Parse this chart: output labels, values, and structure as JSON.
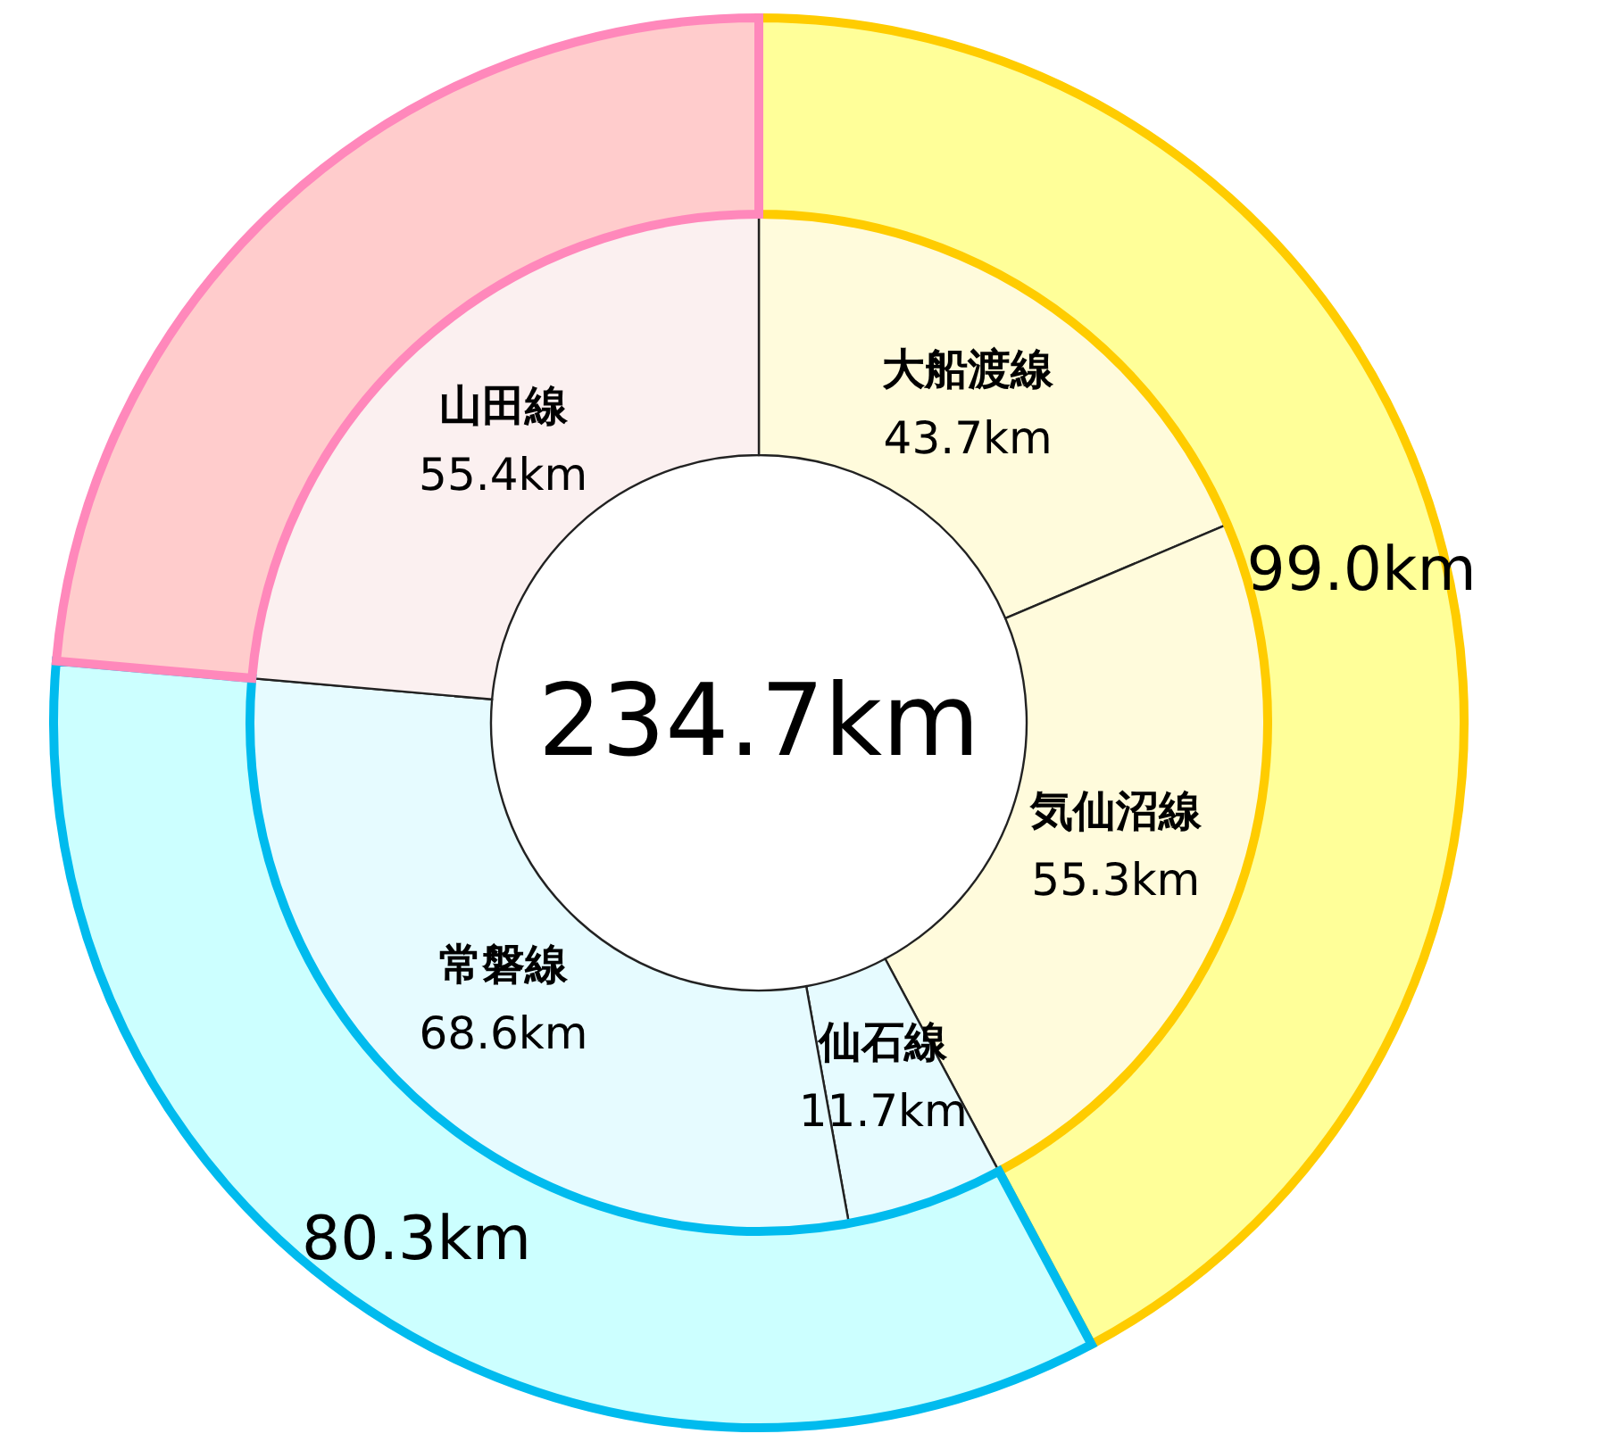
{
  "chart_data": {
    "type": "donut",
    "annotations": [
      "234.7km"
    ],
    "legend": false,
    "categories": [
      "大船渡線",
      "気仙沼線",
      "仙石線",
      "常磐線",
      "山田線"
    ],
    "series": [
      {
        "values": [
          43.7,
          55.3,
          11.7,
          68.6,
          55.4
        ],
        "colors": [
          "#fffbdc",
          "#fffbdc",
          "#e6fbff",
          "#e6fbff",
          "#fbf0f0"
        ],
        "value_labels": [
          "43.7km",
          "55.3km",
          "11.7km",
          "68.6km",
          "55.4km"
        ]
      },
      {
        "values": [
          99.0,
          null,
          80.3,
          null,
          55.4
        ],
        "colors": [
          "#ffff99",
          "#ffff99",
          "#ccffff",
          "#ccffff",
          "#ffcccc"
        ],
        "value_labels": [
          "99.0km",
          null,
          "80.3km",
          null,
          null
        ]
      }
    ]
  }
}
